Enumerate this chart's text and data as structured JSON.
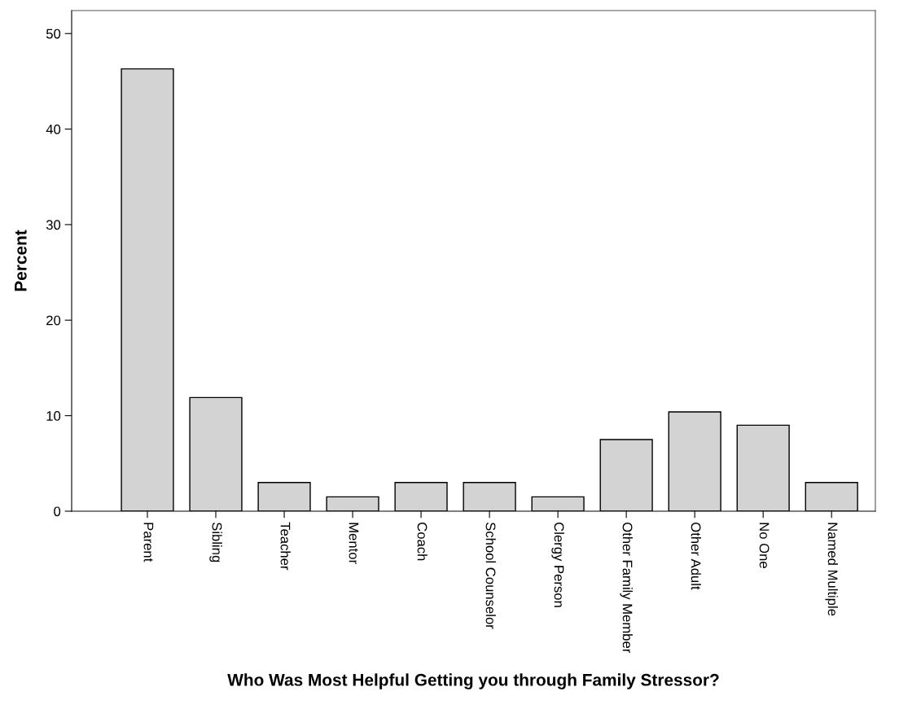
{
  "chart_data": {
    "type": "bar",
    "xlabel": "Who Was Most Helpful Getting you through Family Stressor?",
    "ylabel": "Percent",
    "categories": [
      "Parent",
      "Sibling",
      "Teacher",
      "Mentor",
      "Coach",
      "School Counselor",
      "Clergy Person",
      "Other Family Member",
      "Other Adult",
      "No One",
      "Named Multiple"
    ],
    "values": [
      46.3,
      11.9,
      3.0,
      1.5,
      3.0,
      3.0,
      1.5,
      7.5,
      10.4,
      9.0,
      3.0
    ],
    "color": "#d3d3d3",
    "ylim": [
      0,
      52.4
    ],
    "yticks": [
      0,
      10,
      20,
      30,
      40,
      50
    ],
    "grid": false,
    "legend": false
  }
}
